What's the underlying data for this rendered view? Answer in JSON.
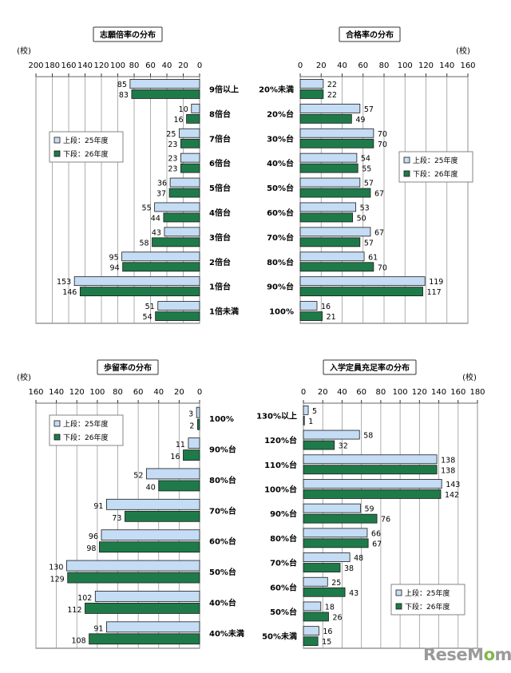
{
  "legend": {
    "upper": "上段：25年度",
    "lower": "下段：26年度"
  },
  "colors": {
    "upper": "#c5dcf5",
    "lower": "#1f7a4a",
    "stroke": "#1a1a1a",
    "grid": "#9a9a9a"
  },
  "watermark": {
    "pre": "ReseM",
    "o": "o",
    "post": "m"
  },
  "chart_data": [
    {
      "type": "bar",
      "title": "志願倍率の分布",
      "unit": "(校)",
      "orientation": "horizontal-reversed",
      "xlim": [
        0,
        200
      ],
      "ticks": [
        200,
        180,
        160,
        140,
        120,
        100,
        80,
        60,
        40,
        20,
        0
      ],
      "categories": [
        "9倍以上",
        "8倍台",
        "7倍台",
        "6倍台",
        "5倍台",
        "4倍台",
        "3倍台",
        "2倍台",
        "1倍台",
        "1倍未満"
      ],
      "series": [
        {
          "name": "上段：25年度",
          "values": [
            85,
            10,
            25,
            23,
            36,
            55,
            43,
            95,
            153,
            51
          ]
        },
        {
          "name": "下段：26年度",
          "values": [
            83,
            16,
            23,
            23,
            37,
            44,
            58,
            94,
            146,
            54
          ]
        }
      ],
      "legend_position": "top-left"
    },
    {
      "type": "bar",
      "title": "合格率の分布",
      "unit": "(校)",
      "orientation": "horizontal",
      "xlim": [
        0,
        160
      ],
      "ticks": [
        0,
        20,
        40,
        60,
        80,
        100,
        120,
        140,
        160
      ],
      "categories": [
        "20%未満",
        "20%台",
        "30%台",
        "40%台",
        "50%台",
        "60%台",
        "70%台",
        "80%台",
        "90%台",
        "100%"
      ],
      "series": [
        {
          "name": "上段：25年度",
          "values": [
            22,
            57,
            70,
            54,
            57,
            53,
            67,
            61,
            119,
            16
          ]
        },
        {
          "name": "下段：26年度",
          "values": [
            22,
            49,
            70,
            55,
            67,
            50,
            57,
            70,
            117,
            21
          ]
        }
      ],
      "legend_position": "right"
    },
    {
      "type": "bar",
      "title": "歩留率の分布",
      "unit": "(校)",
      "orientation": "horizontal-reversed",
      "xlim": [
        0,
        160
      ],
      "ticks": [
        160,
        140,
        120,
        100,
        80,
        60,
        40,
        20,
        0
      ],
      "categories": [
        "100%",
        "90%台",
        "80%台",
        "70%台",
        "60%台",
        "50%台",
        "40%台",
        "40%未満"
      ],
      "series": [
        {
          "name": "上段：25年度",
          "values": [
            3,
            11,
            52,
            91,
            96,
            130,
            102,
            91
          ]
        },
        {
          "name": "下段：26年度",
          "values": [
            2,
            16,
            40,
            73,
            98,
            129,
            112,
            108
          ]
        }
      ],
      "legend_position": "top-left"
    },
    {
      "type": "bar",
      "title": "入学定員充足率の分布",
      "unit": "(校)",
      "orientation": "horizontal",
      "xlim": [
        0,
        180
      ],
      "ticks": [
        0,
        20,
        40,
        60,
        80,
        100,
        120,
        140,
        160,
        180
      ],
      "categories": [
        "130%以上",
        "120%台",
        "110%台",
        "100%台",
        "90%台",
        "80%台",
        "70%台",
        "60%台",
        "50%台",
        "50%未満"
      ],
      "series": [
        {
          "name": "上段：25年度",
          "values": [
            5,
            58,
            138,
            143,
            59,
            66,
            48,
            25,
            18,
            16
          ]
        },
        {
          "name": "下段：26年度",
          "values": [
            1,
            32,
            138,
            142,
            76,
            67,
            38,
            43,
            26,
            15
          ]
        }
      ],
      "legend_position": "bottom-right"
    }
  ]
}
